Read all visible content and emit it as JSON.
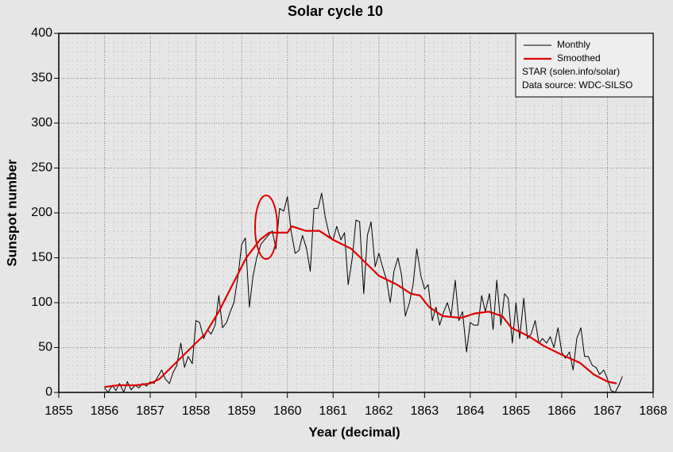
{
  "chart_data": {
    "type": "line",
    "title": "Solar cycle 10",
    "xlabel": "Year (decimal)",
    "ylabel": "Sunspot number",
    "xlim": [
      1855,
      1868
    ],
    "xticks": [
      1855,
      1856,
      1857,
      1858,
      1859,
      1860,
      1861,
      1862,
      1863,
      1864,
      1865,
      1866,
      1867,
      1868
    ],
    "ylim": [
      0,
      400
    ],
    "yticks": [
      0,
      50,
      100,
      150,
      200,
      250,
      300,
      350,
      400
    ],
    "grid": true,
    "legend": "upper right",
    "legend_notes": [
      "STAR (solen.info/solar)",
      "Data source: WDC-SILSO"
    ],
    "series": [
      {
        "name": "Monthly",
        "color": "#000000",
        "x": [
          1856,
          1856.08,
          1856.17,
          1856.25,
          1856.33,
          1856.42,
          1856.5,
          1856.58,
          1856.67,
          1856.75,
          1856.83,
          1856.92,
          1857,
          1857.08,
          1857.17,
          1857.25,
          1857.33,
          1857.42,
          1857.5,
          1857.58,
          1857.67,
          1857.75,
          1857.83,
          1857.92,
          1858,
          1858.08,
          1858.17,
          1858.25,
          1858.33,
          1858.42,
          1858.5,
          1858.58,
          1858.67,
          1858.75,
          1858.83,
          1858.92,
          1859,
          1859.08,
          1859.17,
          1859.25,
          1859.33,
          1859.42,
          1859.5,
          1859.58,
          1859.67,
          1859.75,
          1859.83,
          1859.92,
          1860,
          1860.08,
          1860.17,
          1860.25,
          1860.33,
          1860.42,
          1860.5,
          1860.58,
          1860.67,
          1860.75,
          1860.83,
          1860.92,
          1861,
          1861.08,
          1861.17,
          1861.25,
          1861.33,
          1861.42,
          1861.5,
          1861.58,
          1861.67,
          1861.75,
          1861.83,
          1861.92,
          1862,
          1862.08,
          1862.17,
          1862.25,
          1862.33,
          1862.42,
          1862.5,
          1862.58,
          1862.67,
          1862.75,
          1862.83,
          1862.92,
          1863,
          1863.08,
          1863.17,
          1863.25,
          1863.33,
          1863.42,
          1863.5,
          1863.58,
          1863.67,
          1863.75,
          1863.83,
          1863.92,
          1864,
          1864.08,
          1864.17,
          1864.25,
          1864.33,
          1864.42,
          1864.5,
          1864.58,
          1864.67,
          1864.75,
          1864.83,
          1864.92,
          1865,
          1865.08,
          1865.17,
          1865.25,
          1865.33,
          1865.42,
          1865.5,
          1865.58,
          1865.67,
          1865.75,
          1865.83,
          1865.92,
          1866,
          1866.08,
          1866.17,
          1866.25,
          1866.33,
          1866.42,
          1866.5,
          1866.58,
          1866.67,
          1866.75,
          1866.83,
          1866.92,
          1867,
          1867.08,
          1867.17,
          1867.25,
          1867.33
        ],
        "values": [
          5,
          0,
          8,
          2,
          10,
          0,
          12,
          3,
          8,
          5,
          10,
          7,
          12,
          10,
          18,
          25,
          15,
          10,
          22,
          30,
          55,
          28,
          40,
          32,
          80,
          78,
          60,
          70,
          65,
          75,
          108,
          72,
          78,
          90,
          100,
          130,
          165,
          172,
          95,
          130,
          150,
          165,
          170,
          175,
          180,
          160,
          205,
          202,
          218,
          180,
          155,
          158,
          175,
          160,
          135,
          205,
          205,
          222,
          195,
          175,
          170,
          185,
          170,
          178,
          120,
          150,
          192,
          190,
          110,
          175,
          190,
          140,
          155,
          140,
          125,
          100,
          135,
          150,
          130,
          85,
          100,
          120,
          160,
          130,
          115,
          120,
          80,
          95,
          75,
          90,
          100,
          85,
          125,
          80,
          90,
          45,
          78,
          75,
          75,
          108,
          90,
          110,
          70,
          125,
          75,
          110,
          105,
          55,
          100,
          60,
          105,
          60,
          65,
          80,
          55,
          60,
          55,
          62,
          50,
          72,
          45,
          38,
          45,
          25,
          60,
          72,
          40,
          40,
          30,
          28,
          20,
          25,
          15,
          2,
          0,
          8,
          18
        ]
      },
      {
        "name": "Smoothed",
        "color": "#dd0000",
        "x": [
          1856,
          1856.3,
          1856.7,
          1857,
          1857.2,
          1857.5,
          1857.8,
          1858.2,
          1858.5,
          1858.8,
          1859.1,
          1859.4,
          1859.6,
          1860,
          1860.1,
          1860.4,
          1860.7,
          1861,
          1861.4,
          1861.8,
          1862,
          1862.4,
          1862.7,
          1862.9,
          1863.1,
          1863.4,
          1863.8,
          1864.1,
          1864.4,
          1864.7,
          1864.9,
          1865.3,
          1865.6,
          1866,
          1866.4,
          1866.7,
          1867,
          1867.2
        ],
        "values": [
          6,
          8,
          8,
          10,
          15,
          30,
          45,
          65,
          90,
          120,
          150,
          170,
          178,
          178,
          185,
          180,
          180,
          170,
          160,
          140,
          130,
          120,
          110,
          108,
          95,
          85,
          83,
          88,
          90,
          85,
          72,
          62,
          52,
          42,
          33,
          20,
          12,
          10
        ]
      }
    ]
  }
}
